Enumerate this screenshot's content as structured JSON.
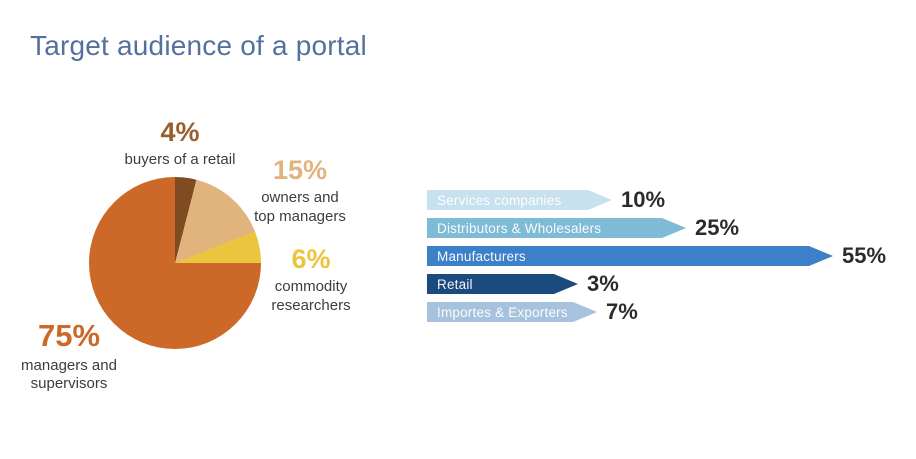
{
  "title": "Target audience of a portal",
  "colors": {
    "title": "#54719E",
    "sub_label": "#3D3D3D",
    "bar_value_text": "#2B2B2B",
    "bar_label_text": "#FFFFFF"
  },
  "chart_data": [
    {
      "type": "pie",
      "title": "",
      "direction": "clockwise",
      "start_angle_deg": 0,
      "slices": [
        {
          "label": "buyers of a retail",
          "value": 4,
          "display": "4%",
          "color": "#7E4B22",
          "label_color": "#9A5E2D"
        },
        {
          "label": "owners and top managers",
          "value": 15,
          "display": "15%",
          "color": "#E1B37D",
          "label_color": "#E1B37D"
        },
        {
          "label": "commodity researchers",
          "value": 6,
          "display": "6%",
          "color": "#ECC53F",
          "label_color": "#ECC53F"
        },
        {
          "label": "managers and supervisors",
          "value": 75,
          "display": "75%",
          "color": "#CC6928",
          "label_color": "#CC6928"
        }
      ]
    },
    {
      "type": "bar",
      "orientation": "horizontal",
      "categories": [
        "Services companies",
        "Distributors & Wholesalers",
        "Manufacturers",
        "Retail",
        "Importes & Exporters"
      ],
      "values": [
        10,
        25,
        55,
        3,
        7
      ],
      "value_suffix": "%",
      "bar_colors": [
        "#C8E1EE",
        "#7FBAD7",
        "#3B80C8",
        "#1A4A7E",
        "#A6C2DD"
      ],
      "legend": "none",
      "grid": false
    }
  ]
}
